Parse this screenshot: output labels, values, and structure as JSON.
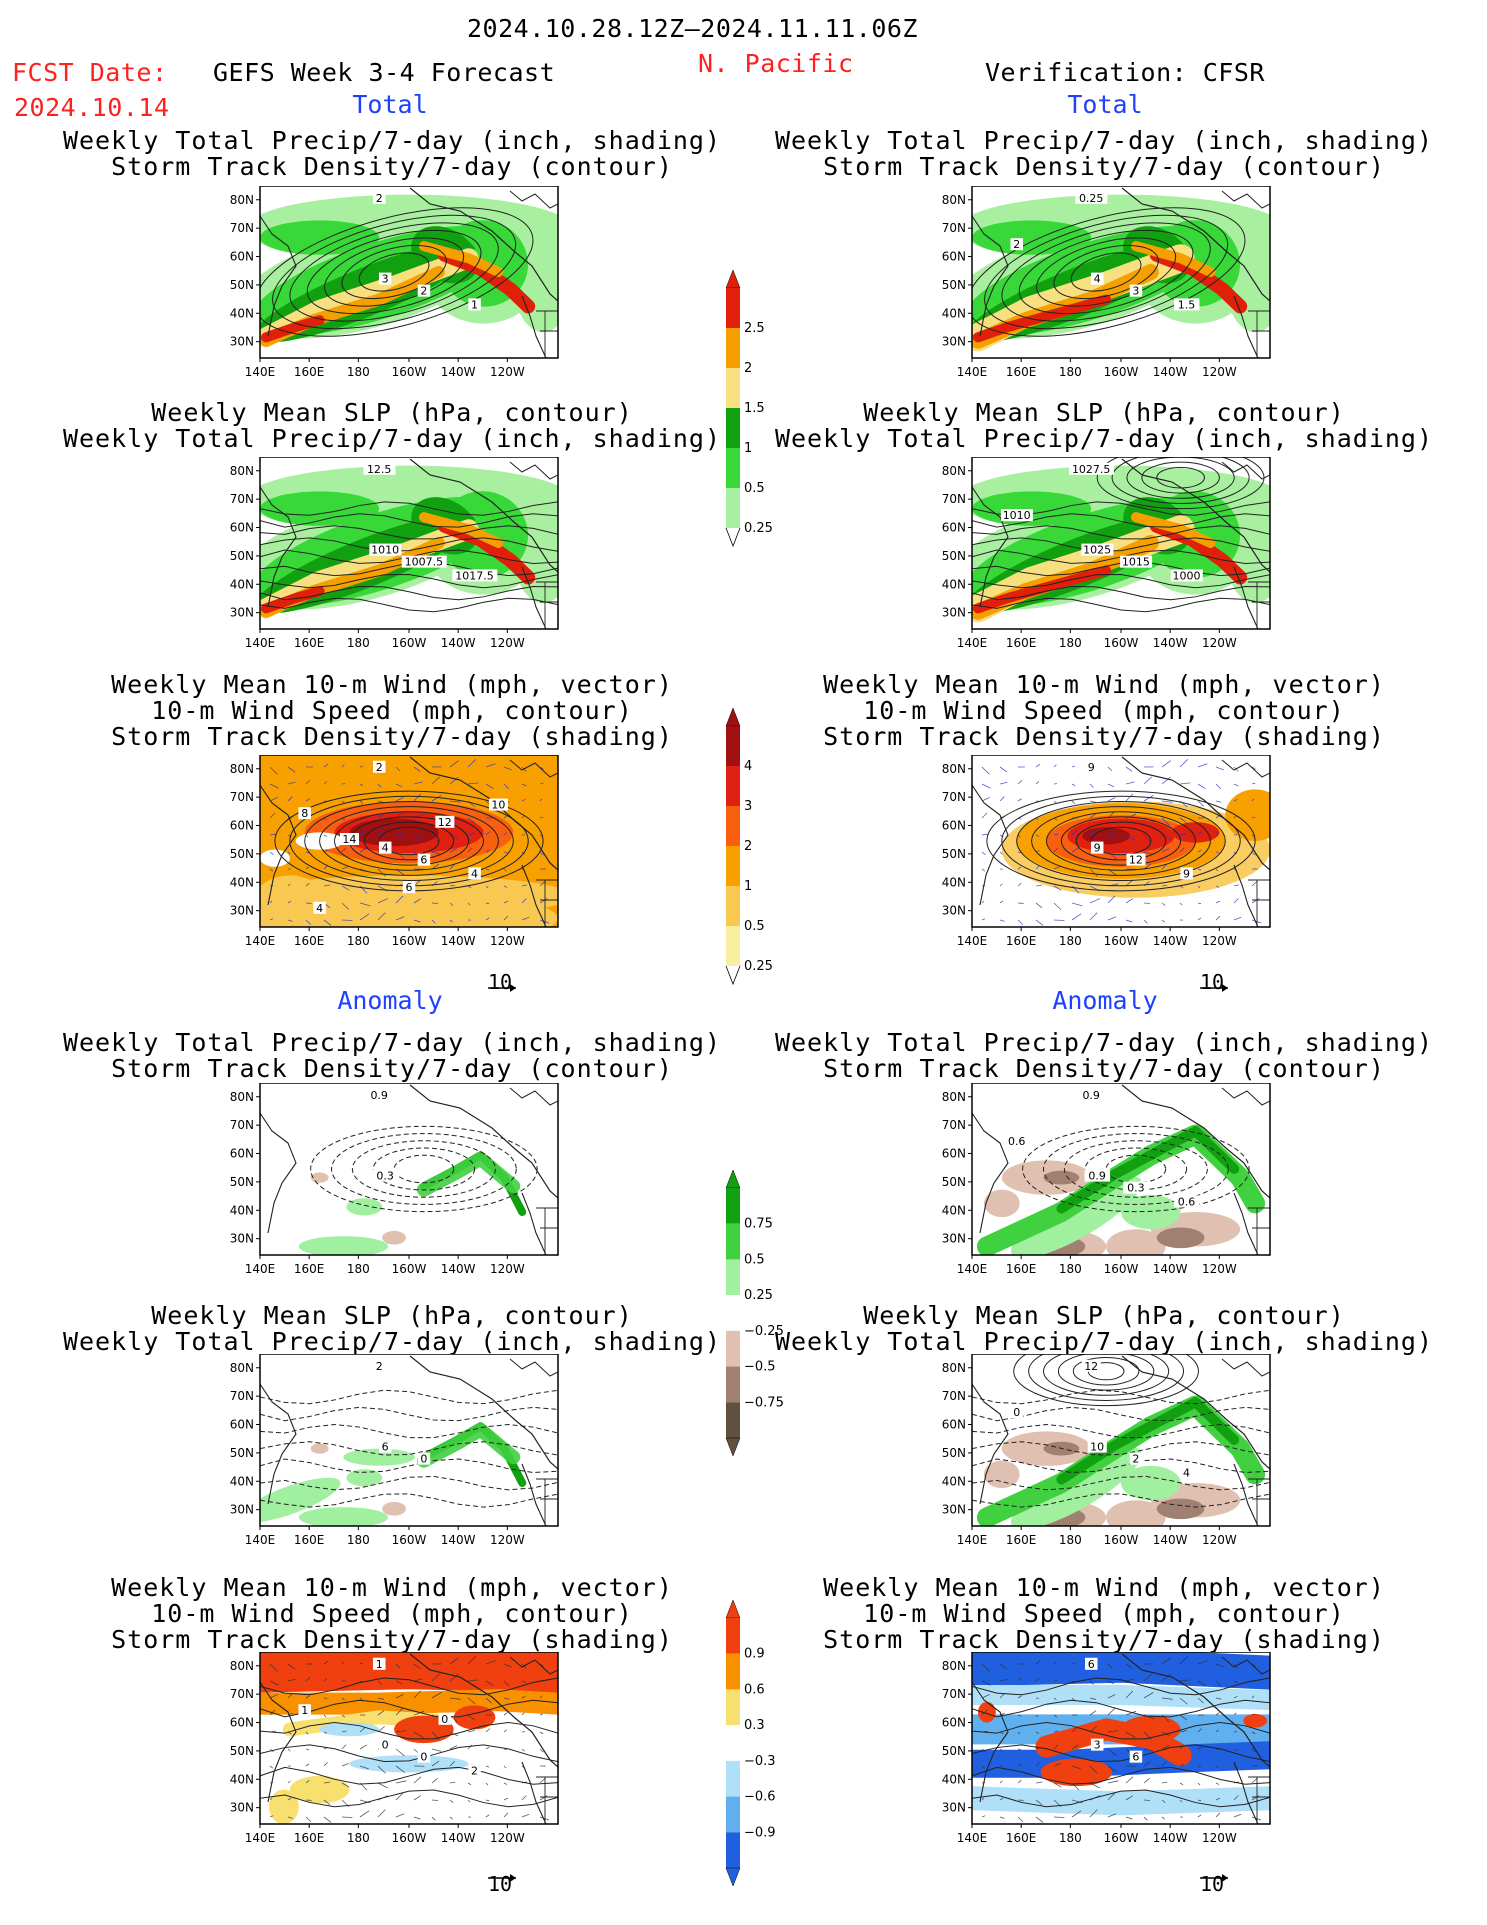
{
  "header": {
    "period": "2024.10.28.12Z–2024.11.11.06Z",
    "fcst_label": "FCST Date:",
    "fcst_date": "2024.10.14",
    "forecast_title": "GEFS Week 3-4 Forecast",
    "region": "N. Pacific",
    "verification": "Verification: CFSR"
  },
  "sections": {
    "total_left": "Total",
    "total_right": "Total",
    "anomaly_left": "Anomaly",
    "anomaly_right": "Anomaly"
  },
  "titles": {
    "precip_storm": [
      "Weekly Total Precip/7-day (inch, shading)",
      "Storm Track Density/7-day (contour)"
    ],
    "slp_precip": [
      "Weekly Mean SLP (hPa, contour)",
      "Weekly Total Precip/7-day (inch, shading)"
    ],
    "wind_storm": [
      "Weekly Mean 10-m Wind (mph, vector)",
      "10-m Wind Speed (mph, contour)",
      "Storm Track Density/7-day (shading)"
    ]
  },
  "axes": {
    "lat_labels": [
      "80N",
      "70N",
      "60N",
      "50N",
      "40N",
      "30N"
    ],
    "lon_labels": [
      "140E",
      "160E",
      "180",
      "160W",
      "140W",
      "120W"
    ]
  },
  "vector_ref": "10",
  "colorbars": {
    "precip_total": {
      "labels": [
        "2.5",
        "2",
        "1.5",
        "1",
        "0.5",
        "0.25"
      ],
      "colors": [
        "#e0200a",
        "#f5a000",
        "#f8e080",
        "#10a010",
        "#38d838",
        "#a8f0a0"
      ]
    },
    "storm_total": {
      "labels": [
        "4",
        "3",
        "2",
        "1",
        "0.5",
        "0.25"
      ],
      "colors": [
        "#a01010",
        "#e02010",
        "#f86010",
        "#f8a000",
        "#f8c850",
        "#f8f0a0"
      ]
    },
    "precip_anom": {
      "labels": [
        "0.75",
        "0.5",
        "0.25",
        "−0.25",
        "−0.5",
        "−0.75"
      ],
      "colors": [
        "#10a010",
        "#40d040",
        "#a0f0a0",
        "#ffffff",
        "#e0c0b0",
        "#a08070",
        "#605040"
      ]
    },
    "storm_anom": {
      "labels": [
        "0.9",
        "0.6",
        "0.3",
        "−0.3",
        "−0.6",
        "−0.9"
      ],
      "colors": [
        "#f04010",
        "#f89000",
        "#f8e070",
        "#ffffff",
        "#b0e0f8",
        "#60b0f0",
        "#2060e0"
      ]
    },
    "legend_colors": {
      "ocean_blue_contours": "#3030c0"
    }
  },
  "panels": {
    "p1l": [
      "2",
      "3",
      "2",
      "1"
    ],
    "p1r": [
      "0.25",
      "4",
      "3",
      "1.5",
      "2"
    ],
    "p2l": [
      "12.5",
      "1010",
      "1007.5",
      "1017.5"
    ],
    "p2r": [
      "1027.5",
      "1025",
      "1015",
      "1000",
      "1010"
    ],
    "p3l": [
      "2",
      "4",
      "6",
      "4",
      "8",
      "12",
      "14",
      "10",
      "6",
      "4"
    ],
    "p3r": [
      "9",
      "9",
      "12",
      "9"
    ],
    "p4l": [
      "0.9",
      "0.3"
    ],
    "p4r": [
      "0.9",
      "0.9",
      "0.3",
      "0.6",
      "0.6"
    ],
    "p5l": [
      "2",
      "6",
      "0"
    ],
    "p5r": [
      "12",
      "10",
      "2",
      "4",
      "0"
    ],
    "p6l": [
      "1",
      "0",
      "0",
      "2",
      "1",
      "0"
    ],
    "p6r": [
      "6",
      "3",
      "6"
    ]
  }
}
